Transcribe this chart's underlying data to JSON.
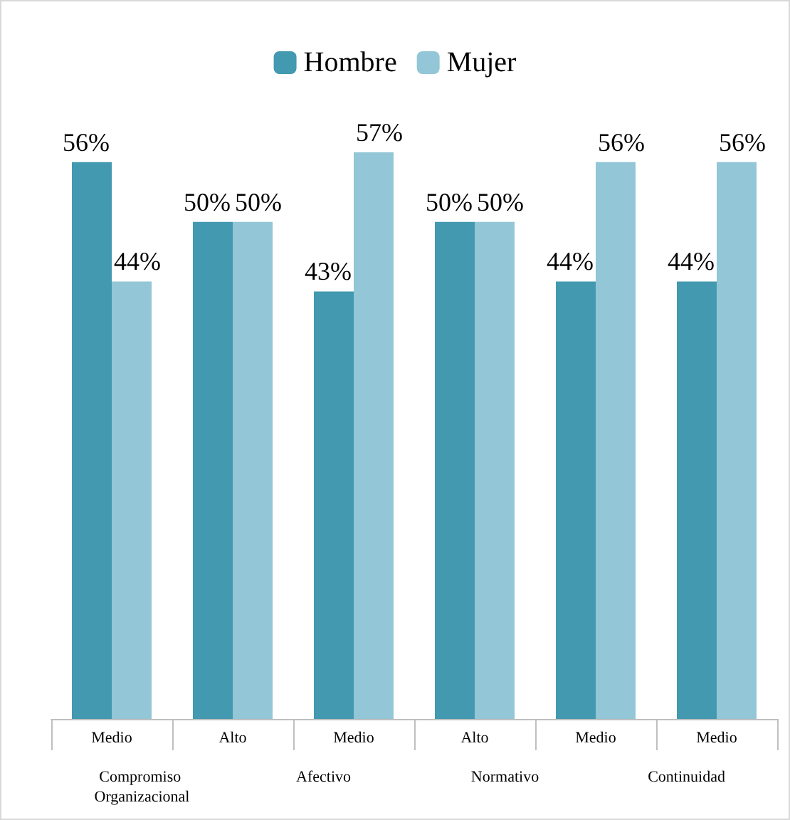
{
  "chart_data": {
    "type": "bar",
    "categories": [
      "Medio",
      "Alto",
      "Medio",
      "Alto",
      "Medio",
      "Medio"
    ],
    "annotations": [
      "Compromiso Organizacional",
      "Afectivo",
      "Normativo",
      "Continuidad"
    ],
    "series": [
      {
        "name": "Hombre",
        "color": "#4299b0",
        "values": [
          56,
          50,
          43,
          50,
          44,
          44
        ],
        "value_labels": [
          "56%",
          "50%",
          "43%",
          "50%",
          "44%",
          "44%"
        ]
      },
      {
        "name": "Mujer",
        "color": "#93c6d6",
        "values": [
          44,
          50,
          57,
          50,
          56,
          56
        ],
        "value_labels": [
          "44%",
          "50%",
          "57%",
          "50%",
          "56%",
          "56%"
        ]
      }
    ],
    "legend": "top"
  }
}
